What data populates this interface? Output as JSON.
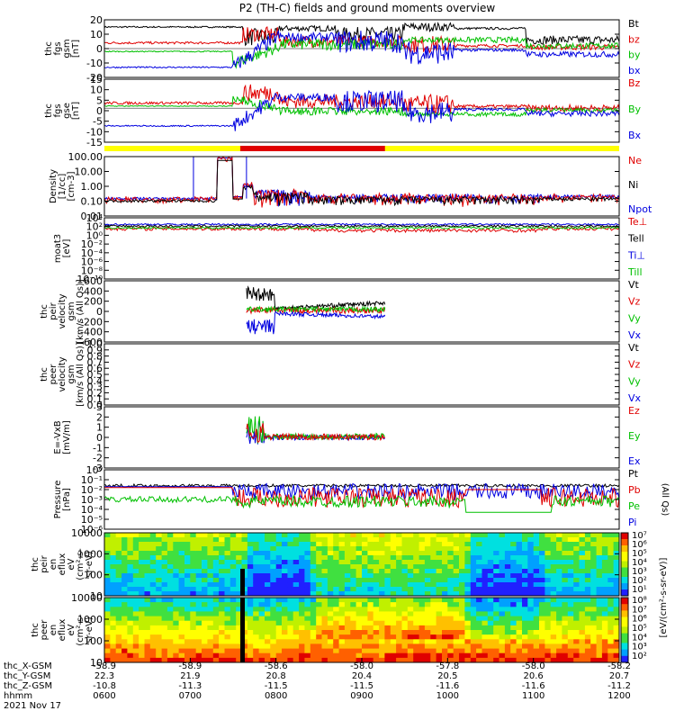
{
  "title": "P2 (TH-C) fields and ground moments overview",
  "colors": {
    "black": "#000000",
    "red": "#e00000",
    "green": "#00c000",
    "blue": "#0000e0",
    "yellow": "#ffff00"
  },
  "chart_data": {
    "type": "line",
    "panels": [
      {
        "id": "fgs-gsm",
        "ylabel": [
          "thc",
          "fgs",
          "gsm",
          "[nT]"
        ],
        "ylim": [
          -20,
          20
        ],
        "yticks": [
          "20",
          "10",
          "0",
          "-10",
          "-20"
        ],
        "legend": [
          {
            "name": "Bt",
            "color": "black"
          },
          {
            "name": "bz",
            "color": "red"
          },
          {
            "name": "by",
            "color": "green"
          },
          {
            "name": "bx",
            "color": "blue"
          }
        ]
      },
      {
        "id": "fgs-gse",
        "ylabel": [
          "thc",
          "fgs",
          "gse",
          "[nT]"
        ],
        "ylim": [
          -20,
          17
        ],
        "yticks": [
          "15",
          "10",
          "5",
          "0",
          "-5",
          "-10",
          "-15"
        ],
        "legend": [
          {
            "name": "Bz",
            "color": "red"
          },
          {
            "name": "By",
            "color": "green"
          },
          {
            "name": "Bx",
            "color": "blue"
          }
        ]
      },
      {
        "id": "density",
        "ylabel": [
          "Density",
          "[1/cc]",
          "[cm-3]"
        ],
        "log": true,
        "yticks": [
          "100.00",
          "10.00",
          "1.00",
          "0.10",
          "0.01"
        ],
        "legend": [
          {
            "name": "Ne",
            "color": "red"
          },
          {
            "name": "Ni",
            "color": "black"
          },
          {
            "name": "Npot",
            "color": "blue"
          }
        ]
      },
      {
        "id": "temperature",
        "ylabel": [
          "moat3",
          "[eV]"
        ],
        "log": true,
        "yticks": [
          "10⁴",
          "10²",
          "10⁰",
          "10⁻²",
          "10⁻⁴",
          "10⁻⁶",
          "10⁻⁸",
          "10⁻¹⁰"
        ],
        "legend": [
          {
            "name": "Te⊥",
            "color": "red"
          },
          {
            "name": "Tell",
            "color": "black"
          },
          {
            "name": "Ti⊥",
            "color": "blue"
          },
          {
            "name": "Till",
            "color": "green"
          }
        ]
      },
      {
        "id": "peir-velocity",
        "ylabel": [
          "thc",
          "peir",
          "velocity",
          "gsm",
          "[km/s (All Qs)]"
        ],
        "ylim": [
          -600,
          600
        ],
        "yticks": [
          "600",
          "400",
          "200",
          "0",
          "-200",
          "-400",
          "-600"
        ],
        "legend": [
          {
            "name": "Vt",
            "color": "black"
          },
          {
            "name": "Vz",
            "color": "red"
          },
          {
            "name": "Vy",
            "color": "green"
          },
          {
            "name": "Vx",
            "color": "blue"
          }
        ]
      },
      {
        "id": "peer-velocity",
        "ylabel": [
          "thc",
          "peer",
          "velocity",
          "gsm",
          "[km/s (All Qs)]"
        ],
        "ylim": [
          0,
          1
        ],
        "yticks": [
          "1.0",
          "0.9",
          "0.8",
          "0.7",
          "0.6",
          "0.5",
          "0.4",
          "0.3",
          "0.2",
          "0.1",
          "0.0"
        ],
        "legend": [
          {
            "name": "Vt",
            "color": "black"
          },
          {
            "name": "Vz",
            "color": "red"
          },
          {
            "name": "Vy",
            "color": "green"
          },
          {
            "name": "Vx",
            "color": "blue"
          }
        ]
      },
      {
        "id": "efield",
        "ylabel": [
          "E=-VxB",
          "[mV/m]"
        ],
        "ylim": [
          -3,
          3
        ],
        "yticks": [
          "3",
          "2",
          "1",
          "0",
          "-1",
          "-2",
          "-3"
        ],
        "legend": [
          {
            "name": "Ez",
            "color": "red"
          },
          {
            "name": "Ey",
            "color": "green"
          },
          {
            "name": "Ex",
            "color": "blue"
          }
        ]
      },
      {
        "id": "pressure",
        "ylabel": [
          "Pressure",
          "[nPa]"
        ],
        "log": true,
        "yticks": [
          "10⁰",
          "10⁻¹",
          "10⁻²",
          "10⁻³",
          "10⁻⁴",
          "10⁻⁵",
          "10⁻⁶"
        ],
        "legend": [
          {
            "name": "Pt",
            "color": "black"
          },
          {
            "name": "Pb",
            "color": "red"
          },
          {
            "name": "Pe",
            "color": "green"
          },
          {
            "name": "Pi",
            "color": "blue"
          }
        ],
        "right_label": "(All Qs)"
      },
      {
        "id": "peir-eflux",
        "ylabel": [
          "thc",
          "peir",
          "en",
          "eflux",
          "eV",
          "(cm²-s-",
          "sr-eV)"
        ],
        "yticks": [
          "10000",
          "1000",
          "100",
          "10"
        ],
        "colorbar": {
          "ticks": [
            "10⁷",
            "10⁶",
            "10⁵",
            "10⁴",
            "10³",
            "10²",
            "10¹"
          ]
        }
      },
      {
        "id": "peer-eflux",
        "ylabel": [
          "thc",
          "peer",
          "en",
          "eflux",
          "eV",
          "(cm²-s-",
          "sr-eV)"
        ],
        "yticks": [
          "10000",
          "1000",
          "100",
          "10"
        ],
        "colorbar": {
          "ticks": [
            "10⁸",
            "10⁷",
            "10⁶",
            "10⁵",
            "10⁴",
            "10³",
            "10²"
          ]
        },
        "colorbar_label": "[eV/(cm²-s-sr-eV)]"
      }
    ],
    "x_axis": {
      "row_labels": [
        "thc_X-GSM",
        "thc_Y-GSM",
        "thc_Z-GSM",
        "hhmm"
      ],
      "ticks": [
        {
          "x": "-58.9",
          "y": "22.3",
          "z": "-10.8",
          "t": "0600"
        },
        {
          "x": "-58.9",
          "y": "21.9",
          "z": "-11.3",
          "t": "0700"
        },
        {
          "x": "-58.6",
          "y": "20.8",
          "z": "-11.5",
          "t": "0800"
        },
        {
          "x": "-58.0",
          "y": "20.4",
          "z": "-11.5",
          "t": "0900"
        },
        {
          "x": "-57.8",
          "y": "20.5",
          "z": "-11.6",
          "t": "1000"
        },
        {
          "x": "-58.0",
          "y": "20.6",
          "z": "-11.6",
          "t": "1100"
        },
        {
          "x": "-58.2",
          "y": "20.7",
          "z": "-11.2",
          "t": "1200"
        }
      ],
      "date": "2021 Nov 17"
    },
    "grid": false
  }
}
